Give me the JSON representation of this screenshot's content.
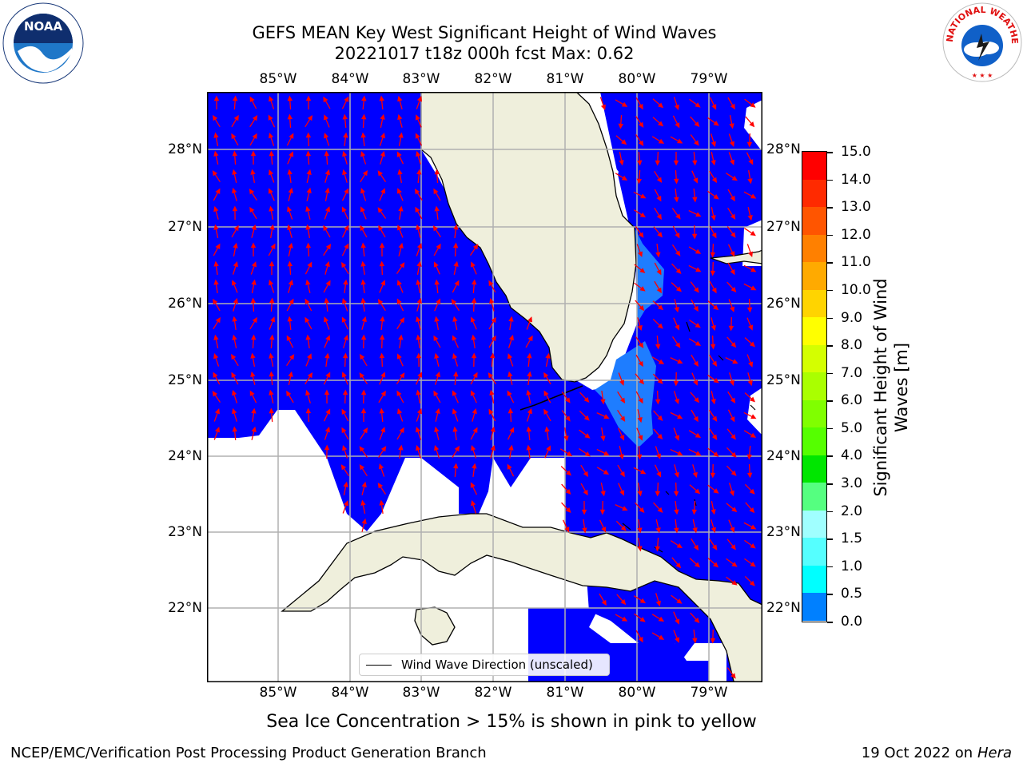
{
  "title_line1": "GEFS MEAN Key West Significant Height of Wind Waves",
  "title_line2": "20221017 t18z 000h fcst   Max: 0.62",
  "lon_ticks": [
    "85°W",
    "84°W",
    "83°W",
    "82°W",
    "81°W",
    "80°W",
    "79°W"
  ],
  "lat_ticks": [
    "28°N",
    "27°N",
    "26°N",
    "25°N",
    "24°N",
    "23°N",
    "22°N"
  ],
  "colorbar": {
    "label": "Significant Height of Wind Waves [m]",
    "ticks": [
      "15.0",
      "14.0",
      "13.0",
      "12.0",
      "11.0",
      "10.0",
      "9.0",
      "8.0",
      "7.0",
      "6.0",
      "5.0",
      "4.0",
      "3.0",
      "2.0",
      "1.5",
      "1.0",
      "0.5",
      "0.0"
    ],
    "colors": [
      "#ff0000",
      "#ff2a00",
      "#ff5500",
      "#ff8000",
      "#ffaa00",
      "#ffd400",
      "#ffff00",
      "#d4ff00",
      "#aaff00",
      "#80ff00",
      "#55ff00",
      "#00e600",
      "#55ff80",
      "#a0ffff",
      "#55ffff",
      "#00ffff",
      "#0080ff",
      "#0000ff"
    ]
  },
  "legend_label": "Wind Wave Direction (unscaled)",
  "sea_ice_note": "Sea Ice Concentration > 15% is shown in pink to yellow",
  "footer_left": "NCEP/EMC/Verification Post Processing Product Generation Branch",
  "footer_date": "19 Oct 2022 on ",
  "footer_host": "Hera",
  "logos": {
    "left": "NOAA",
    "right": "NATIONAL WEATHER SERVICE"
  },
  "colors": {
    "wave_fill": "#0000ff",
    "wave_high": "#1e7dff",
    "land": "#efefdc",
    "arrow": "#ff0000",
    "grid": "#b0b0b0"
  }
}
